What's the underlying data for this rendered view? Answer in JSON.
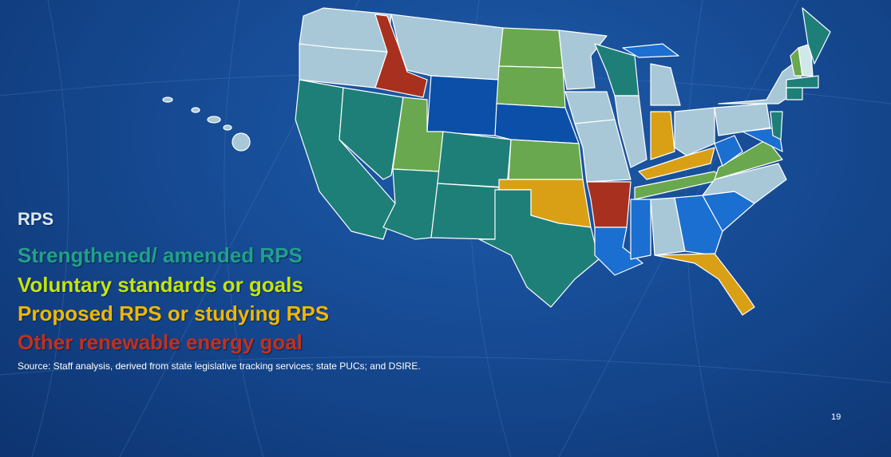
{
  "legend": [
    {
      "label": "RPS",
      "color": "#dce8f0"
    },
    {
      "label": "Strengthened/ amended RPS",
      "color": "#22a08a"
    },
    {
      "label": "Voluntary standards or goals",
      "color": "#c6e40a"
    },
    {
      "label": "Proposed RPS or studying RPS",
      "color": "#f2b600"
    },
    {
      "label": "Other renewable energy goal",
      "color": "#c3301c"
    }
  ],
  "source": "Source: Staff analysis, derived from state legislative tracking services; state PUCs; and DSIRE.",
  "page_number": "19"
}
